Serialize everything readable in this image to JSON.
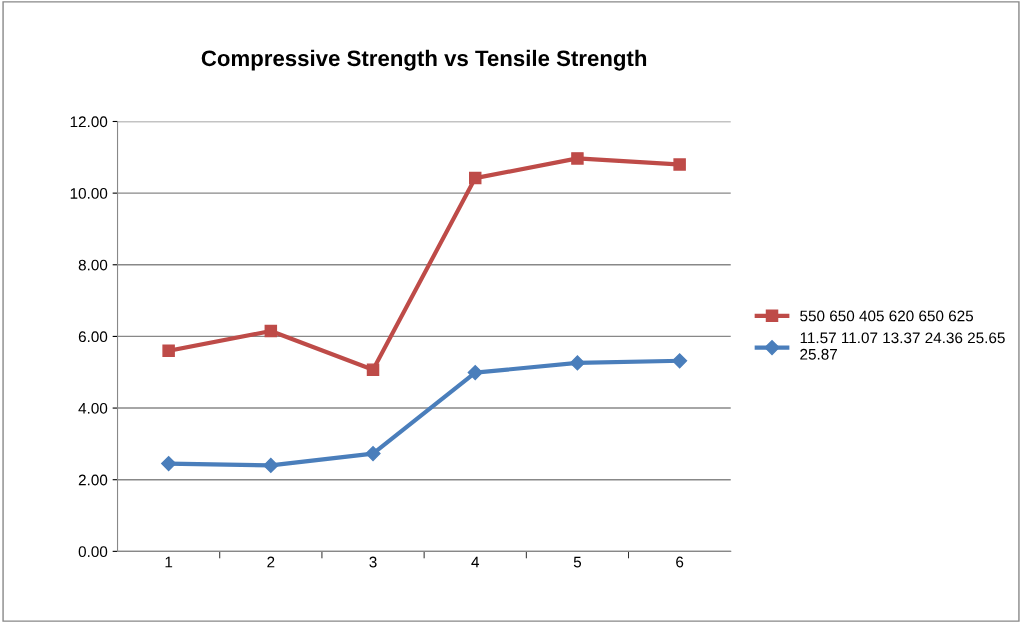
{
  "chart_data": {
    "type": "line",
    "title": "Compressive Strength vs Tensile Strength",
    "categories": [
      "1",
      "2",
      "3",
      "4",
      "5",
      "6"
    ],
    "series": [
      {
        "name": "550 650 405 620 650 625",
        "color": "#be4b48",
        "marker": "square",
        "values": [
          5.6,
          6.15,
          5.07,
          10.42,
          10.97,
          10.8
        ]
      },
      {
        "name": "11.57 11.07 13.37 24.36 25.65\n25.87",
        "color": "#4a7ebb",
        "marker": "diamond",
        "values": [
          2.45,
          2.4,
          2.73,
          4.99,
          5.26,
          5.32
        ]
      }
    ],
    "ylim": [
      0,
      12
    ],
    "yticks": [
      {
        "value": 0,
        "label": "0.00"
      },
      {
        "value": 2,
        "label": "2.00"
      },
      {
        "value": 4,
        "label": "4.00"
      },
      {
        "value": 6,
        "label": "6.00"
      },
      {
        "value": 8,
        "label": "8.00"
      },
      {
        "value": 10,
        "label": "10.00"
      },
      {
        "value": 12,
        "label": "12.00"
      }
    ],
    "grid": "y",
    "legend": "right",
    "line_style": "solid"
  }
}
